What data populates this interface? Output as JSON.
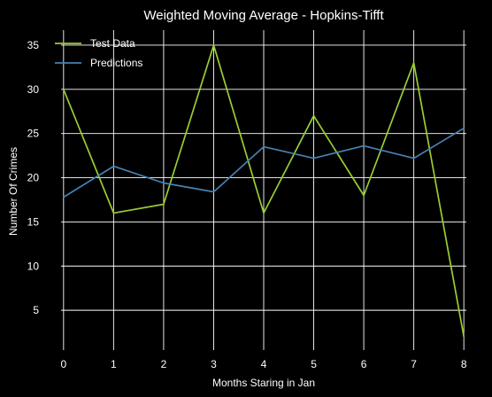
{
  "chart_data": {
    "type": "line",
    "title": "Weighted Moving Average - Hopkins-Tifft",
    "xlabel": "Months Staring in Jan",
    "ylabel": "Number Of Crimes",
    "x": [
      0,
      1,
      2,
      3,
      4,
      5,
      6,
      7,
      8
    ],
    "xticks": [
      0,
      1,
      2,
      3,
      4,
      5,
      6,
      7,
      8
    ],
    "yticks": [
      5,
      10,
      15,
      20,
      25,
      30,
      35
    ],
    "xlim": [
      -0.05,
      8.05
    ],
    "ylim": [
      0.5,
      36.7
    ],
    "grid": true,
    "legend_position": "top-left",
    "series": [
      {
        "name": "Test Data",
        "color": "#9acd32",
        "values": [
          30,
          16,
          17,
          35,
          16,
          27,
          18,
          33,
          2
        ]
      },
      {
        "name": "Predictions",
        "color": "#4682b4",
        "values": [
          17.8,
          21.3,
          19.4,
          18.4,
          23.5,
          22.2,
          23.6,
          22.2,
          25.6
        ]
      }
    ]
  },
  "colors": {
    "background": "#000000",
    "text": "#ffffff",
    "grid": "#ffffff"
  }
}
